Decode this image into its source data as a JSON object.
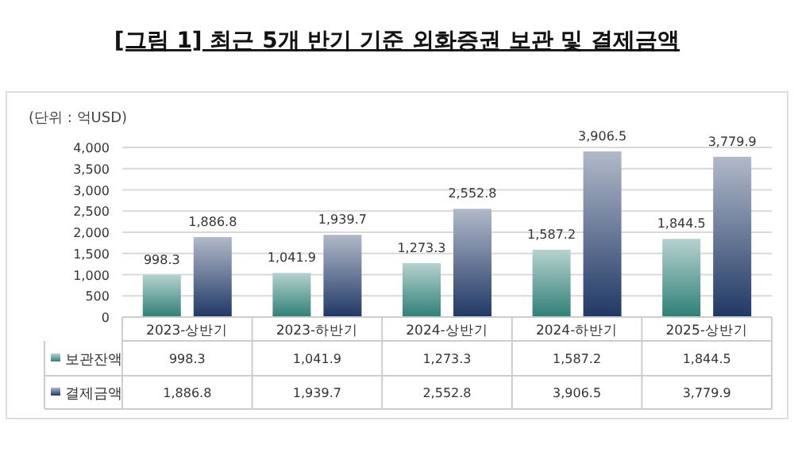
{
  "chart_data": {
    "type": "bar",
    "title": "[그림 1] 최근 5개 반기 기준 외화증권 보관 및 결제금액",
    "annotations": [
      "(단위 : 억USD)"
    ],
    "categories": [
      "2023-상반기",
      "2023-하반기",
      "2024-상반기",
      "2024-하반기",
      "2025-상반기"
    ],
    "series": [
      {
        "name": "보관잔액",
        "color": "#2f7f77",
        "values": [
          998.3,
          1041.9,
          1273.3,
          1587.2,
          1844.5
        ],
        "value_labels": [
          "998.3",
          "1,041.9",
          "1,273.3",
          "1,587.2",
          "1,844.5"
        ]
      },
      {
        "name": "결제금액",
        "color": "#1f3864",
        "values": [
          1886.8,
          1939.7,
          2552.8,
          3906.5,
          3779.9
        ],
        "value_labels": [
          "1,886.8",
          "1,939.7",
          "2,552.8",
          "3,906.5",
          "3,779.9"
        ]
      }
    ],
    "ylim": [
      0,
      4000
    ],
    "yticks": [
      {
        "value": 0,
        "label": "0"
      },
      {
        "value": 500,
        "label": "500"
      },
      {
        "value": 1000,
        "label": "1,000"
      },
      {
        "value": 1500,
        "label": "1,500"
      },
      {
        "value": 2000,
        "label": "2,000"
      },
      {
        "value": 2500,
        "label": "2,500"
      },
      {
        "value": 3000,
        "label": "3,000"
      },
      {
        "value": 3500,
        "label": "3,500"
      },
      {
        "value": 4000,
        "label": "4,000"
      }
    ],
    "grid": "y",
    "legend": "bottom"
  }
}
